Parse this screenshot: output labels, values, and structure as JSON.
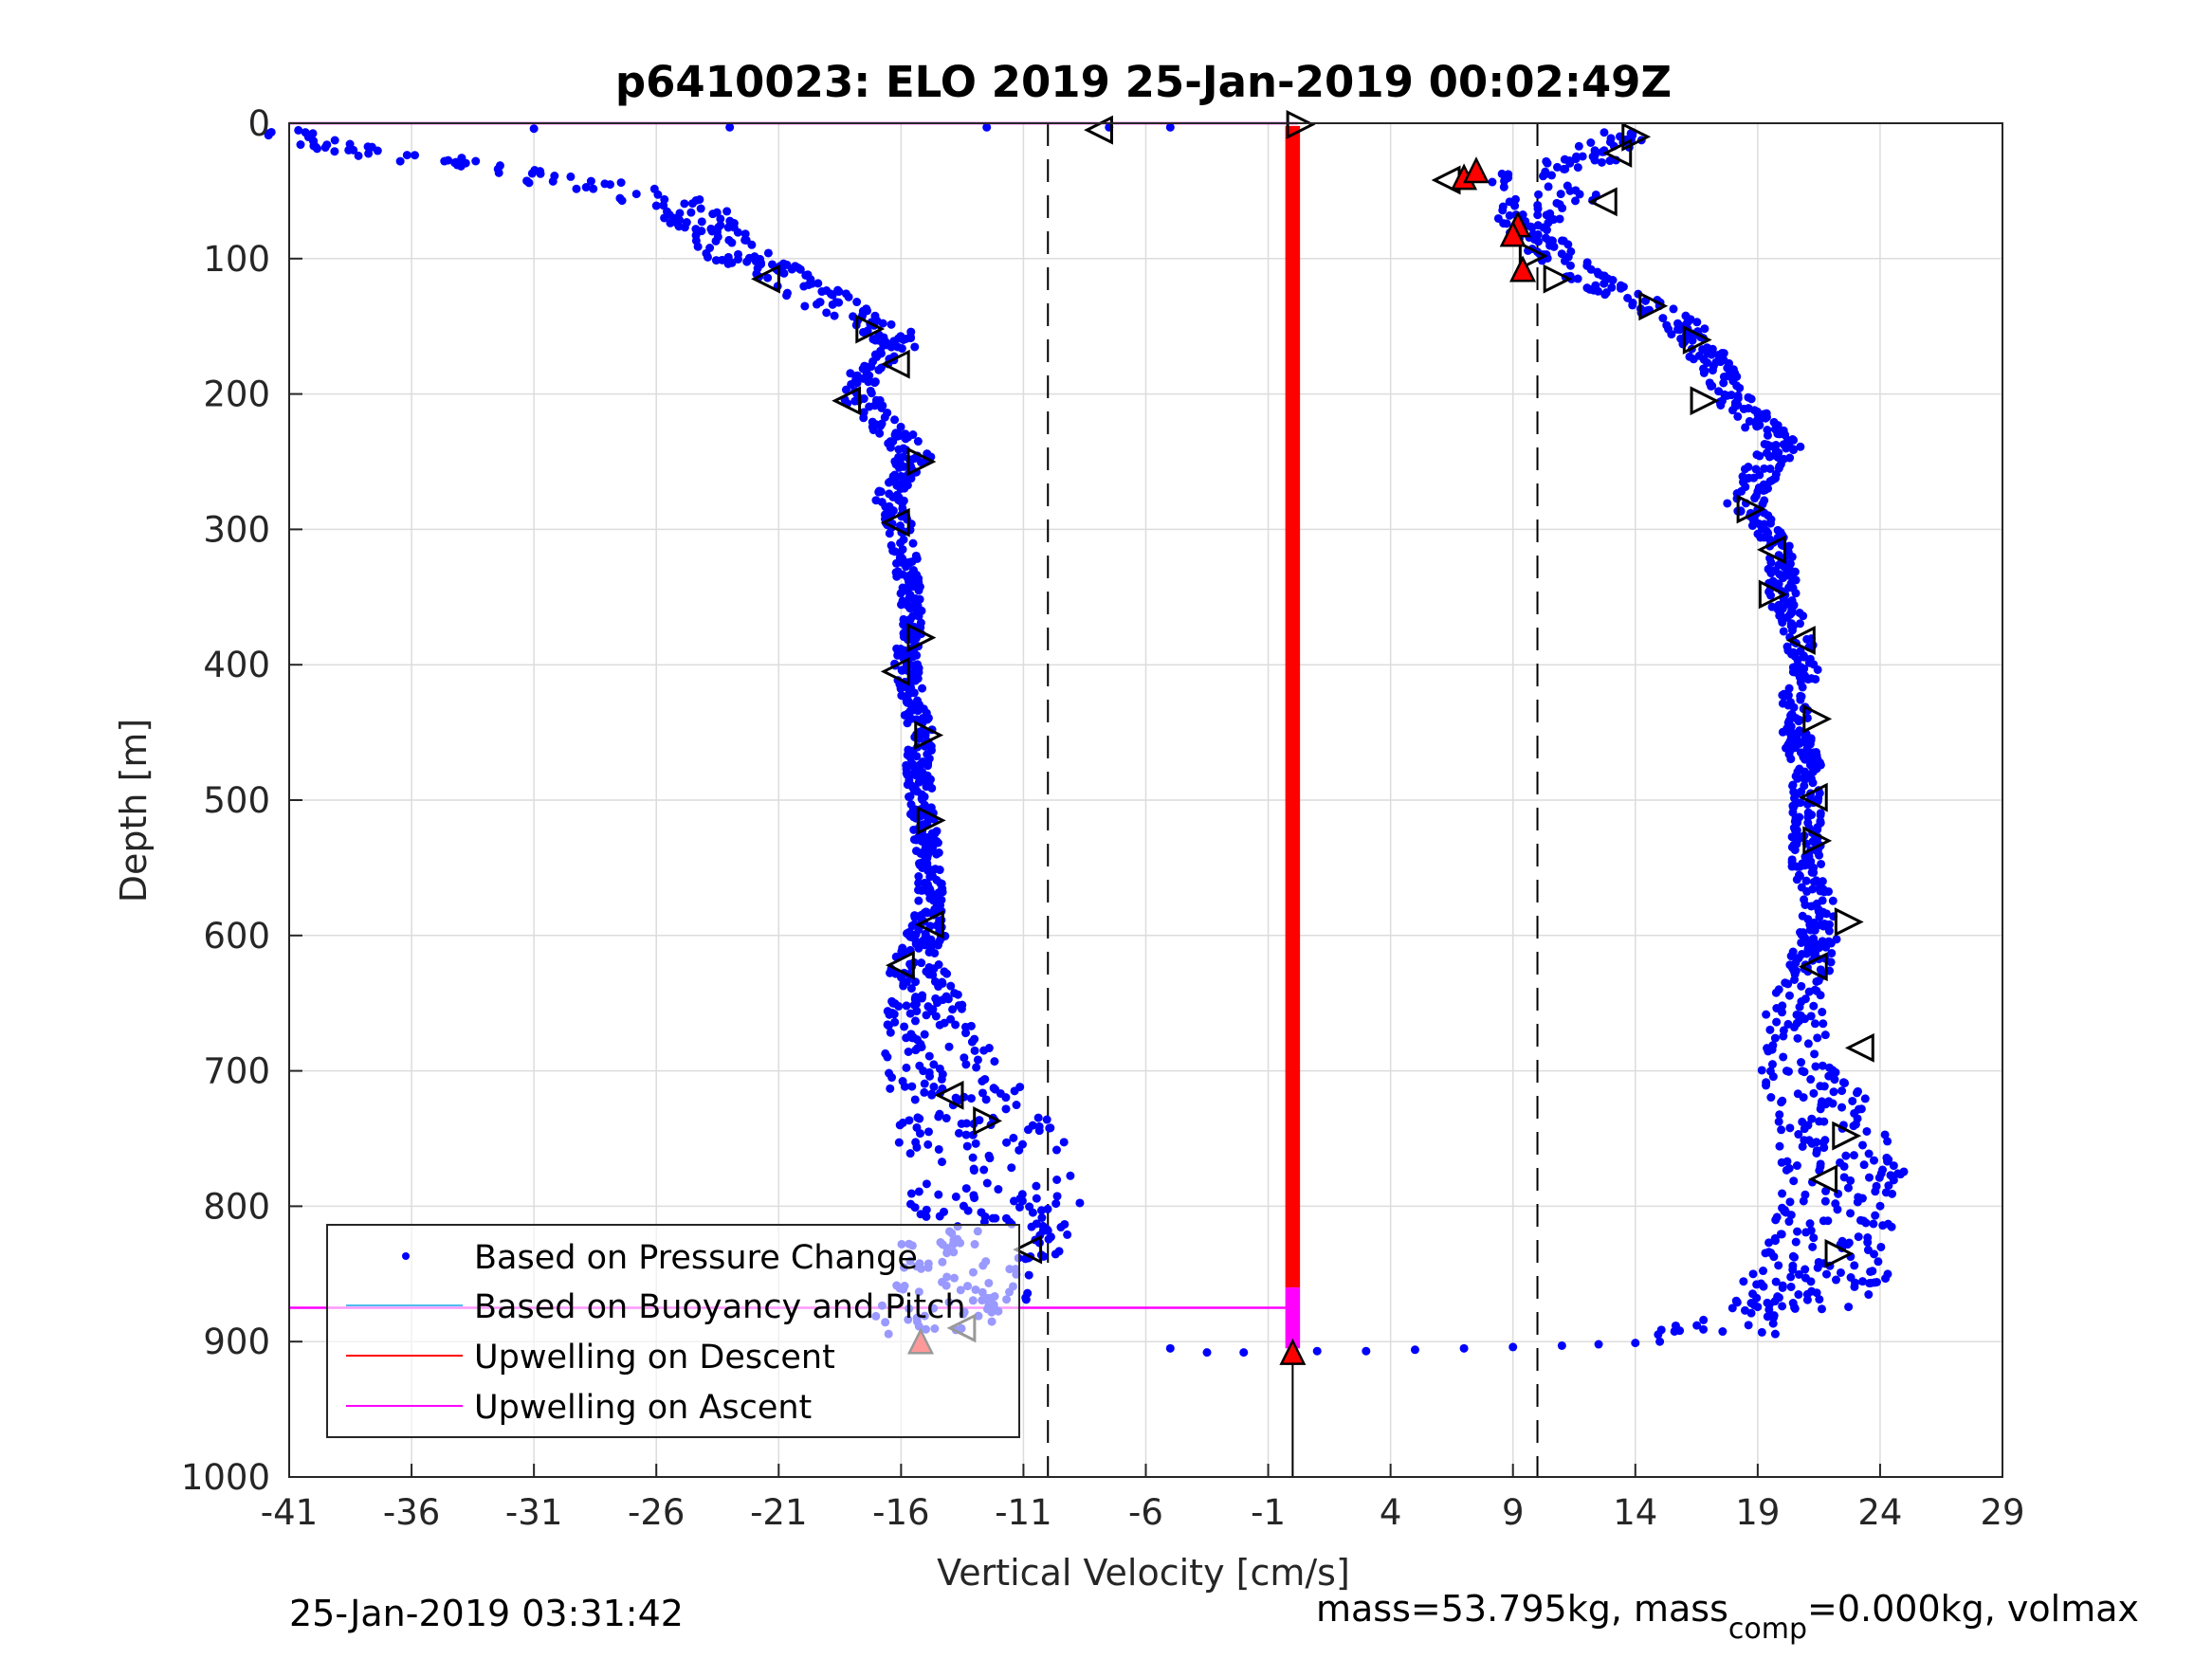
{
  "chart_data": {
    "type": "scatter",
    "title": "p6410023: ELO 2019 25-Jan-2019 00:02:49Z",
    "xlabel": "Vertical Velocity [cm/s]",
    "ylabel": "Depth [m]",
    "xlim": [
      -41,
      29
    ],
    "ylim": [
      0,
      1000
    ],
    "y_reversed": true,
    "grid": true,
    "xticks": [
      "-41",
      "-36",
      "-31",
      "-26",
      "-21",
      "-16",
      "-11",
      "-6",
      "-1",
      "4",
      "9",
      "14",
      "19",
      "24",
      "29"
    ],
    "yticks": [
      "0",
      "100",
      "200",
      "300",
      "400",
      "500",
      "600",
      "700",
      "800",
      "900",
      "1000"
    ],
    "legend": {
      "placement": "bottom-left",
      "entries": [
        {
          "label": "Based on Pressure Change",
          "color": "#0000ff",
          "marker": "dot"
        },
        {
          "label": "Based on Buoyancy and Pitch",
          "color": "#4dbeee",
          "marker": "line"
        },
        {
          "label": "Upwelling on Descent",
          "color": "#ff0000",
          "marker": "line"
        },
        {
          "label": "Upwelling on Ascent",
          "color": "#ff00ff",
          "marker": "line"
        }
      ]
    },
    "reference_lines": {
      "dashed_x": [
        -10,
        10
      ],
      "solid_x": [
        0
      ]
    },
    "magenta_depths": [
      0,
      875
    ],
    "descent_profile": {
      "depth": [
        5,
        15,
        25,
        35,
        45,
        55,
        65,
        75,
        85,
        95,
        105,
        115,
        125,
        135,
        145,
        155,
        165,
        175,
        185,
        195,
        205,
        215,
        225,
        235,
        245,
        255,
        265,
        275,
        285,
        300,
        325,
        350,
        375,
        400,
        425,
        450,
        475,
        500,
        525,
        550,
        575,
        600,
        625,
        650,
        675,
        700,
        725,
        750,
        775,
        800,
        825,
        850,
        875,
        895
      ],
      "velocity": [
        -40.5,
        -39,
        -36,
        -33,
        -29,
        -26,
        -24.5,
        -24,
        -23.5,
        -23,
        -21.5,
        -20.5,
        -19.5,
        -18.5,
        -17.5,
        -16.5,
        -16,
        -16.5,
        -17.5,
        -18,
        -17.5,
        -17,
        -16.5,
        -16,
        -15.5,
        -15.8,
        -16.2,
        -16.5,
        -16.3,
        -16,
        -15.8,
        -15.6,
        -15.6,
        -15.8,
        -15.5,
        -15.2,
        -15.3,
        -15.2,
        -15,
        -14.8,
        -14.8,
        -15,
        -15.3,
        -15,
        -14.7,
        -14.2,
        -13.5,
        -12.8,
        -12,
        -12.2,
        -12.5,
        -13,
        -14,
        -15.2
      ],
      "spread": [
        2,
        2,
        2.5,
        2.5,
        2,
        1.8,
        1.5,
        1.5,
        1.5,
        1.5,
        1.5,
        1.5,
        1.5,
        1.5,
        1,
        1,
        0.8,
        0.8,
        0.8,
        0.8,
        0.8,
        0.8,
        0.8,
        0.8,
        0.8,
        0.6,
        0.6,
        0.6,
        0.6,
        0.5,
        0.5,
        0.5,
        0.5,
        0.5,
        0.5,
        0.5,
        0.5,
        0.5,
        0.5,
        0.5,
        0.5,
        0.8,
        1.2,
        1.5,
        2,
        2.5,
        3,
        3.5,
        3.5,
        3.5,
        3.5,
        3.5,
        3,
        2
      ]
    },
    "ascent_profile": {
      "depth": [
        5,
        15,
        25,
        40,
        55,
        70,
        85,
        100,
        115,
        130,
        145,
        160,
        175,
        190,
        205,
        220,
        240,
        260,
        280,
        300,
        325,
        350,
        375,
        400,
        425,
        450,
        475,
        500,
        525,
        550,
        575,
        600,
        625,
        650,
        675,
        700,
        725,
        750,
        775,
        800,
        825,
        850,
        875,
        895
      ],
      "velocity": [
        13.5,
        13,
        12.5,
        9,
        11,
        9.5,
        10,
        11,
        12,
        14,
        15.5,
        16.5,
        17,
        17.5,
        18,
        19,
        20,
        19,
        18.5,
        19.5,
        20,
        20,
        20.5,
        21,
        20.5,
        20.5,
        21,
        21,
        21,
        21,
        21.5,
        21.5,
        21,
        20.5,
        20.5,
        21,
        21.5,
        22,
        22.5,
        22,
        22,
        21.5,
        20.5,
        17
      ],
      "spread": [
        1.5,
        1.5,
        1.5,
        1.5,
        2,
        1.5,
        1,
        1,
        1,
        1,
        1,
        0.8,
        0.8,
        0.8,
        0.8,
        0.8,
        0.8,
        0.8,
        0.8,
        0.6,
        0.6,
        0.6,
        0.6,
        0.6,
        0.6,
        0.6,
        0.6,
        0.6,
        0.6,
        0.6,
        0.6,
        0.8,
        1,
        1,
        1.5,
        2,
        2,
        2.5,
        2.5,
        2.5,
        2.5,
        3,
        2.5,
        3
      ]
    },
    "surface_points": {
      "depth": [
        4,
        3,
        3,
        3,
        3
      ],
      "velocity": [
        -31,
        -23,
        -12.5,
        -7.5,
        -5
      ]
    },
    "bottom_points": {
      "depth": [
        905,
        908,
        908,
        907,
        907,
        906,
        905,
        904,
        903,
        902,
        901,
        900
      ],
      "velocity": [
        -5,
        -3.5,
        -2,
        1,
        3,
        5,
        7,
        9,
        11,
        12.5,
        14,
        15
      ]
    },
    "descent_triangles": [
      {
        "v": -21.5,
        "d": 115,
        "dir": "left"
      },
      {
        "v": -17.3,
        "d": 152,
        "dir": "right"
      },
      {
        "v": -16.2,
        "d": 178,
        "dir": "left"
      },
      {
        "v": -18.2,
        "d": 205,
        "dir": "left"
      },
      {
        "v": -15.2,
        "d": 250,
        "dir": "right"
      },
      {
        "v": -16.2,
        "d": 295,
        "dir": "left"
      },
      {
        "v": -15.2,
        "d": 380,
        "dir": "right"
      },
      {
        "v": -16.2,
        "d": 405,
        "dir": "left"
      },
      {
        "v": -14.9,
        "d": 452,
        "dir": "right"
      },
      {
        "v": -14.8,
        "d": 515,
        "dir": "right"
      },
      {
        "v": -14.8,
        "d": 592,
        "dir": "left"
      },
      {
        "v": -16.0,
        "d": 622,
        "dir": "left"
      },
      {
        "v": -14.0,
        "d": 718,
        "dir": "left"
      },
      {
        "v": -12.5,
        "d": 737,
        "dir": "right"
      },
      {
        "v": -10.8,
        "d": 832,
        "dir": "left"
      },
      {
        "v": -13.5,
        "d": 890,
        "dir": "left"
      },
      {
        "v": -7.9,
        "d": 5,
        "dir": "left"
      },
      {
        "v": 0.3,
        "d": 1,
        "dir": "right"
      }
    ],
    "ascent_triangles": [
      {
        "v": 14.0,
        "d": 10,
        "dir": "right"
      },
      {
        "v": 13.3,
        "d": 22,
        "dir": "left"
      },
      {
        "v": 12.7,
        "d": 58,
        "dir": "left"
      },
      {
        "v": 6.3,
        "d": 42,
        "dir": "left"
      },
      {
        "v": 9.8,
        "d": 98,
        "dir": "right"
      },
      {
        "v": 10.8,
        "d": 115,
        "dir": "right"
      },
      {
        "v": 14.7,
        "d": 135,
        "dir": "right"
      },
      {
        "v": 16.5,
        "d": 160,
        "dir": "right"
      },
      {
        "v": 16.8,
        "d": 205,
        "dir": "right"
      },
      {
        "v": 18.7,
        "d": 285,
        "dir": "right"
      },
      {
        "v": 19.6,
        "d": 315,
        "dir": "left"
      },
      {
        "v": 19.6,
        "d": 348,
        "dir": "right"
      },
      {
        "v": 20.8,
        "d": 382,
        "dir": "left"
      },
      {
        "v": 21.4,
        "d": 440,
        "dir": "right"
      },
      {
        "v": 21.3,
        "d": 498,
        "dir": "left"
      },
      {
        "v": 21.4,
        "d": 530,
        "dir": "right"
      },
      {
        "v": 22.7,
        "d": 590,
        "dir": "right"
      },
      {
        "v": 21.3,
        "d": 623,
        "dir": "left"
      },
      {
        "v": 23.2,
        "d": 683,
        "dir": "left"
      },
      {
        "v": 22.6,
        "d": 748,
        "dir": "right"
      },
      {
        "v": 21.7,
        "d": 780,
        "dir": "left"
      },
      {
        "v": 22.3,
        "d": 835,
        "dir": "right"
      }
    ],
    "red_markers": [
      {
        "v": 7.0,
        "d": 40
      },
      {
        "v": 7.5,
        "d": 35
      },
      {
        "v": 9.2,
        "d": 75
      },
      {
        "v": 9.0,
        "d": 82
      },
      {
        "v": 9.4,
        "d": 108
      },
      {
        "v": -15.2,
        "d": 900
      },
      {
        "v": 0.0,
        "d": 908
      }
    ]
  },
  "footer": {
    "timestamp": "25-Jan-2019 03:31:42",
    "mass_text": "mass=53.795kg, mass",
    "mass_sub": "comp",
    "mass_rest": "=0.000kg, volmax"
  }
}
